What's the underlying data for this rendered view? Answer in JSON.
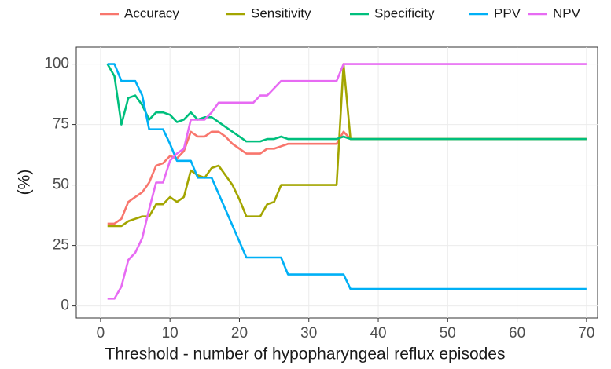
{
  "chart_data": {
    "type": "line",
    "x_label": "Threshold - number of hypopharyngeal reflux episodes",
    "y_label": "(%)",
    "xlim": [
      -3.5,
      71.6
    ],
    "ylim": [
      -5,
      107
    ],
    "xticks": [
      0,
      10,
      20,
      30,
      40,
      50,
      60,
      70
    ],
    "yticks": [
      0,
      25,
      50,
      75,
      100
    ],
    "grid": true,
    "legend": "top",
    "series": [
      {
        "name": "Accuracy",
        "color": "#F8766D",
        "x": [
          1,
          2,
          3,
          4,
          5,
          6,
          7,
          8,
          9,
          10,
          11,
          12,
          13,
          14,
          15,
          16,
          17,
          18,
          19,
          20,
          21,
          22,
          23,
          24,
          25,
          26,
          27,
          34,
          35,
          36,
          70
        ],
        "values": [
          34,
          34,
          36,
          43,
          45,
          47,
          51,
          58,
          59,
          62,
          61,
          64,
          72,
          70,
          70,
          72,
          72,
          70,
          67,
          65,
          63,
          63,
          63,
          65,
          65,
          66,
          67,
          67,
          72,
          69,
          69
        ]
      },
      {
        "name": "Sensitivity",
        "color": "#A3A500",
        "x": [
          1,
          2,
          3,
          4,
          5,
          6,
          7,
          8,
          9,
          10,
          11,
          12,
          13,
          14,
          15,
          16,
          17,
          18,
          19,
          20,
          21,
          22,
          23,
          24,
          25,
          26,
          34,
          35,
          36,
          70
        ],
        "values": [
          33,
          33,
          33,
          35,
          36,
          37,
          37,
          42,
          42,
          45,
          43,
          45,
          56,
          54,
          53,
          57,
          58,
          54,
          50,
          44,
          37,
          37,
          37,
          42,
          43,
          50,
          50,
          100,
          69,
          69
        ]
      },
      {
        "name": "Specificity",
        "color": "#00BF7D",
        "x": [
          1,
          2,
          3,
          4,
          5,
          6,
          7,
          8,
          9,
          10,
          11,
          12,
          13,
          14,
          15,
          16,
          17,
          18,
          19,
          20,
          21,
          22,
          23,
          24,
          25,
          26,
          27,
          34,
          35,
          36,
          70
        ],
        "values": [
          100,
          95,
          75,
          86,
          87,
          83,
          77,
          80,
          80,
          79,
          76,
          77,
          80,
          77,
          78,
          78,
          76,
          74,
          72,
          70,
          68,
          68,
          68,
          69,
          69,
          70,
          69,
          69,
          70,
          69,
          69
        ]
      },
      {
        "name": "PPV",
        "color": "#00B0F6",
        "x": [
          1,
          2,
          3,
          4,
          5,
          6,
          7,
          8,
          9,
          10,
          11,
          12,
          13,
          14,
          15,
          16,
          21,
          26,
          27,
          35,
          36,
          70
        ],
        "values": [
          100,
          100,
          93,
          93,
          93,
          87,
          73,
          73,
          73,
          67,
          60,
          60,
          60,
          53,
          53,
          53,
          20,
          20,
          13,
          13,
          7,
          7
        ]
      },
      {
        "name": "NPV",
        "color": "#E76BF3",
        "x": [
          1,
          2,
          3,
          4,
          5,
          6,
          7,
          8,
          9,
          10,
          11,
          12,
          13,
          14,
          15,
          16,
          17,
          22,
          23,
          24,
          25,
          26,
          34,
          35,
          70
        ],
        "values": [
          3,
          3,
          8,
          19,
          22,
          28,
          40,
          51,
          51,
          60,
          63,
          65,
          77,
          77,
          77,
          80,
          84,
          84,
          87,
          87,
          90,
          93,
          93,
          100,
          100
        ]
      }
    ]
  }
}
